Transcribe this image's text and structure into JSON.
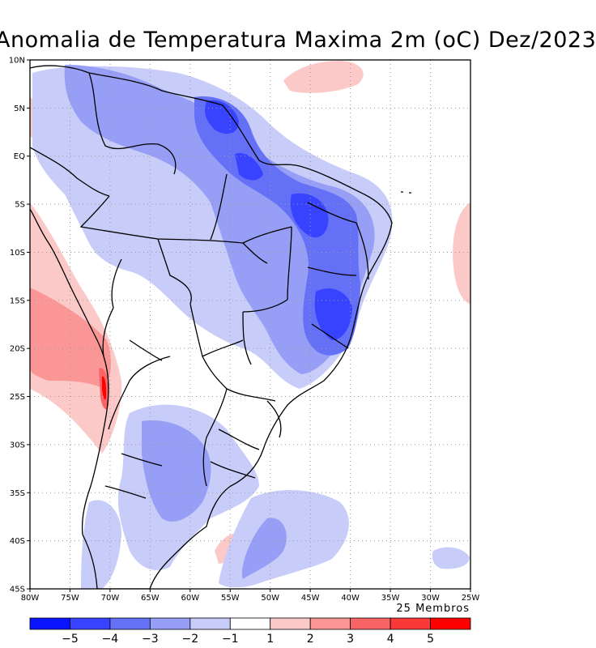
{
  "title": "Anomalia de Temperatura Maxima 2m (oC) Dez/2023",
  "y_axis": {
    "labels": [
      "10N",
      "5N",
      "EQ",
      "5S",
      "10S",
      "15S",
      "20S",
      "25S",
      "30S",
      "35S",
      "40S",
      "45S"
    ],
    "lat": [
      10,
      5,
      0,
      -5,
      -10,
      -15,
      -20,
      -25,
      -30,
      -35,
      -40,
      -45
    ]
  },
  "x_axis": {
    "labels": [
      "80W",
      "75W",
      "70W",
      "65W",
      "60W",
      "55W",
      "50W",
      "45W",
      "40W",
      "35W",
      "30W",
      "25W"
    ],
    "lon": [
      -80,
      -75,
      -70,
      -65,
      -60,
      -55,
      -50,
      -45,
      -40,
      -35,
      -30,
      -25
    ]
  },
  "members_label": "25 Membros",
  "colorbar": {
    "colors": [
      "#0a14ff",
      "#3743ff",
      "#6470f5",
      "#969ef6",
      "#c8ccf9",
      "#ffffff",
      "#fcc9c9",
      "#fb9696",
      "#f96464",
      "#f93838",
      "#ff0000"
    ],
    "labels": [
      "−5",
      "−4",
      "−3",
      "−2",
      "−1",
      "1",
      "2",
      "3",
      "4",
      "5"
    ]
  }
}
